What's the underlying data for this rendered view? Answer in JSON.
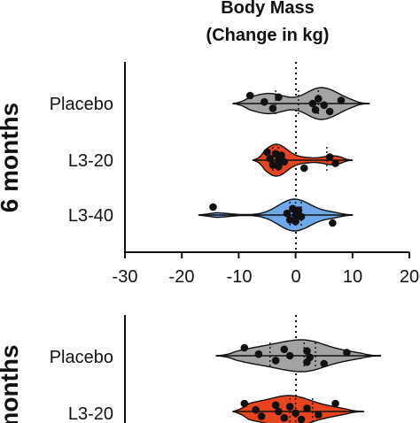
{
  "colors": {
    "Placebo": "#a3a3a3",
    "L3-20": "#e8441f",
    "L3-40": "#6fa8e6"
  },
  "chart_data": [
    {
      "type": "violin",
      "title": [
        "Body Mass",
        "(Change in kg)"
      ],
      "panel_label": "6 months",
      "xlim": [
        -30,
        20
      ],
      "xticks": [
        -30,
        -20,
        -10,
        0,
        10,
        20
      ],
      "reference_line_x": 0,
      "categories": [
        "Placebo",
        "L3-20",
        "L3-40"
      ],
      "series": [
        {
          "name": "Placebo",
          "range": [
            -11,
            13
          ],
          "median": 0.5,
          "q1": -3.5,
          "q3": 4,
          "points": [
            -8,
            -5.5,
            -4,
            -3,
            3,
            3.5,
            4,
            5,
            6,
            8
          ]
        },
        {
          "name": "L3-20",
          "range": [
            -7.5,
            10
          ],
          "median": -3,
          "q1": -4,
          "q3": 5.5,
          "points": [
            -5,
            -4.5,
            -4,
            -3.5,
            -3,
            -3,
            -2.5,
            -2,
            1.5,
            6,
            7
          ]
        },
        {
          "name": "L3-40",
          "range": [
            -17,
            10
          ],
          "median": 0,
          "q1": -1,
          "q3": 1,
          "points": [
            -14.5,
            -1.5,
            -1,
            -0.5,
            0,
            0,
            0.5,
            1,
            6.5
          ]
        }
      ]
    },
    {
      "type": "violin",
      "panel_label": "months",
      "xlim": [
        -30,
        20
      ],
      "reference_line_x": 0,
      "categories": [
        "Placebo",
        "L3-20"
      ],
      "series": [
        {
          "name": "Placebo",
          "range": [
            -14,
            15
          ],
          "median": 1.5,
          "q1": -4.5,
          "q3": 3.5,
          "points": [
            -9,
            -6.5,
            -3.5,
            -2,
            -1,
            2,
            2,
            2.5,
            5,
            9
          ]
        },
        {
          "name": "L3-20",
          "range": [
            -11,
            12
          ],
          "median": 0,
          "q1": -1,
          "q3": 3,
          "points": [
            -9,
            -7,
            -6,
            -3.5,
            -3,
            -2,
            -1,
            0,
            1,
            2,
            4,
            7
          ]
        }
      ]
    }
  ]
}
